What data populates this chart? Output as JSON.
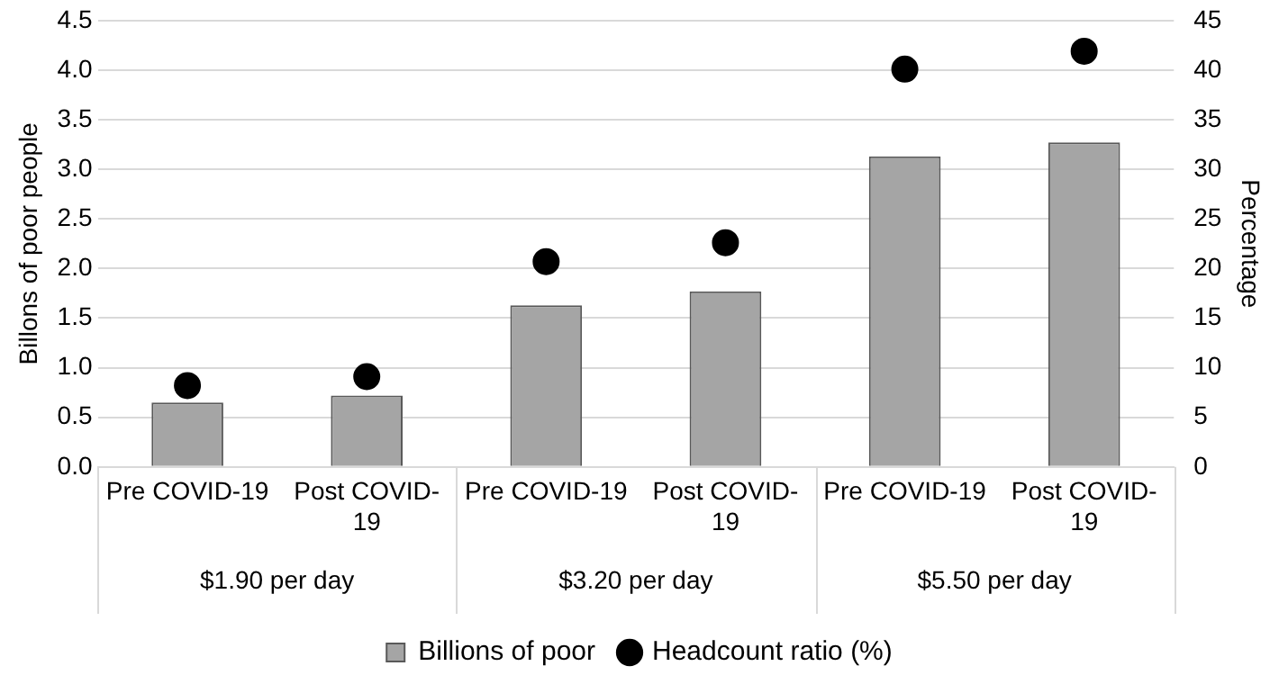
{
  "chart_data": {
    "type": "bar",
    "ylabel": "Billons of poor people",
    "y2label": "Percentage",
    "categories": [
      "Pre COVID-19",
      "Post COVID-19",
      "Pre COVID-19",
      "Post COVID-19",
      "Pre COVID-19",
      "Post COVID-19"
    ],
    "series": [
      {
        "name": "Billions of poor",
        "color": "#a5a5a5",
        "values": [
          0.65,
          0.72,
          1.63,
          1.77,
          3.13,
          3.27
        ]
      },
      {
        "name": "Headcount ratio (%)",
        "type": "scatter",
        "axis": "y2",
        "color": "#000000",
        "values": [
          8.2,
          9.1,
          20.7,
          22.6,
          40.1,
          41.9
        ]
      }
    ],
    "ylim": [
      0,
      4.5
    ],
    "yticks": [
      {
        "value": 0,
        "label": "0.0"
      },
      0.5,
      {
        "value": 1,
        "label": "1.0"
      },
      1.5,
      {
        "value": 2,
        "label": "2.0"
      },
      2.5,
      {
        "value": 3,
        "label": "3.0"
      },
      3.5,
      {
        "value": 4,
        "label": "4.0"
      },
      4.5
    ],
    "y2lim": [
      0,
      45
    ],
    "y2ticks": [
      0,
      5,
      10,
      15,
      20,
      25,
      30,
      35,
      40,
      45
    ],
    "annotations": [
      "$1.90 per day",
      "$3.20 per day",
      "$5.50 per day"
    ],
    "grid": "y",
    "legend": "bottom",
    "marker": "circle"
  }
}
